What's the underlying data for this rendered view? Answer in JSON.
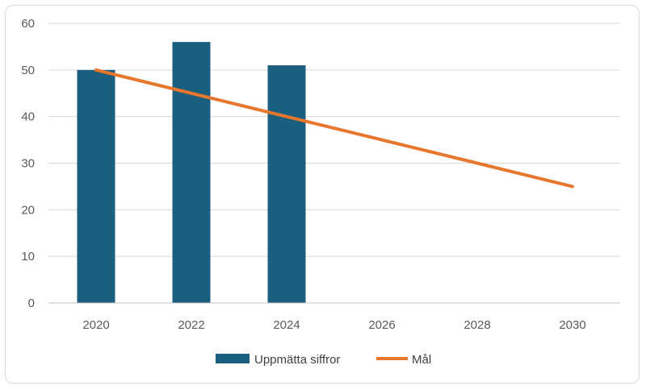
{
  "chart_data": {
    "type": "bar",
    "categories": [
      "2020",
      "2022",
      "2024",
      "2026",
      "2028",
      "2030"
    ],
    "series": [
      {
        "name": "Uppmätta siffror",
        "kind": "bar",
        "color": "#1a5e80",
        "values": [
          50,
          56,
          51,
          null,
          null,
          null
        ]
      },
      {
        "name": "Mål",
        "kind": "line",
        "color": "#e8772e",
        "values": [
          50,
          45,
          40,
          35,
          30,
          25
        ]
      }
    ],
    "ylim": [
      0,
      60
    ],
    "yticks": [
      0,
      10,
      20,
      30,
      40,
      50,
      60
    ],
    "grid": true,
    "legend_position": "bottom"
  }
}
